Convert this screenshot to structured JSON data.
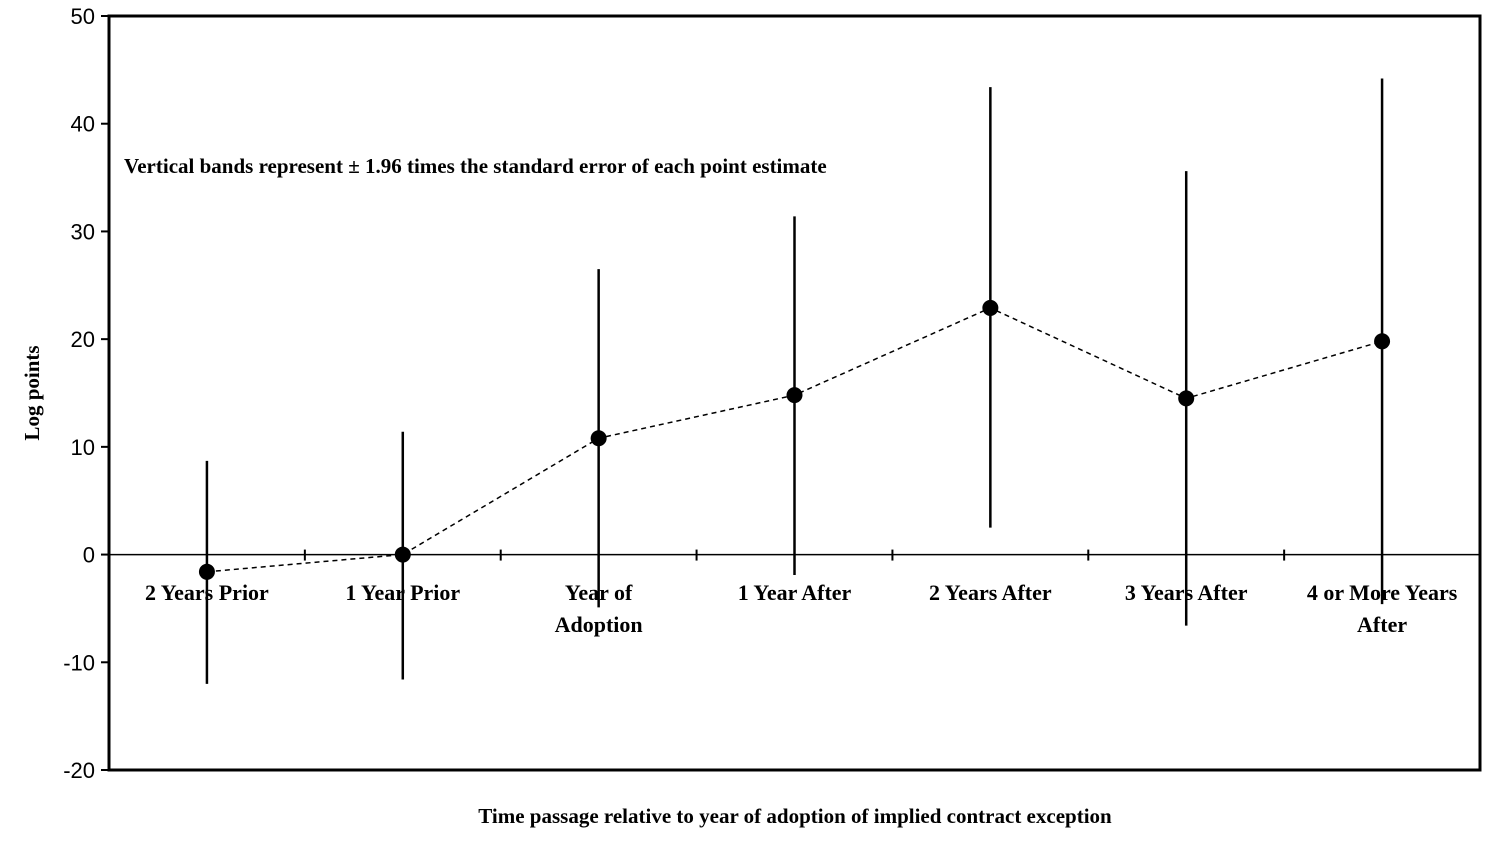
{
  "chart_data": {
    "type": "scatter",
    "note": "Vertical bands represent ± 1.96 times the standard error of each point estimate",
    "xlabel": "Time passage relative to year of adoption of implied contract exception",
    "ylabel": "Log points",
    "ylim": [
      -20,
      50
    ],
    "yticks": [
      "-20",
      "-10",
      "0",
      "10",
      "20",
      "30",
      "40",
      "50"
    ],
    "grid": false,
    "connecting_line": "dashed",
    "categories": [
      [
        "2 Years Prior"
      ],
      [
        "1 Year Prior"
      ],
      [
        "Year of",
        "Adoption"
      ],
      [
        "1 Year After"
      ],
      [
        "2 Years After"
      ],
      [
        "3 Years After"
      ],
      [
        "4 or More Years",
        "After"
      ]
    ],
    "points": [
      {
        "y": -1.6,
        "lower": -12.0,
        "upper": 8.7
      },
      {
        "y": 0.0,
        "lower": -11.6,
        "upper": 11.4
      },
      {
        "y": 10.8,
        "lower": -4.9,
        "upper": 26.5
      },
      {
        "y": 14.8,
        "lower": -1.9,
        "upper": 31.4
      },
      {
        "y": 22.9,
        "lower": 2.5,
        "upper": 43.4
      },
      {
        "y": 14.5,
        "lower": -6.6,
        "upper": 35.6
      },
      {
        "y": 19.8,
        "lower": -4.6,
        "upper": 44.2
      }
    ]
  }
}
